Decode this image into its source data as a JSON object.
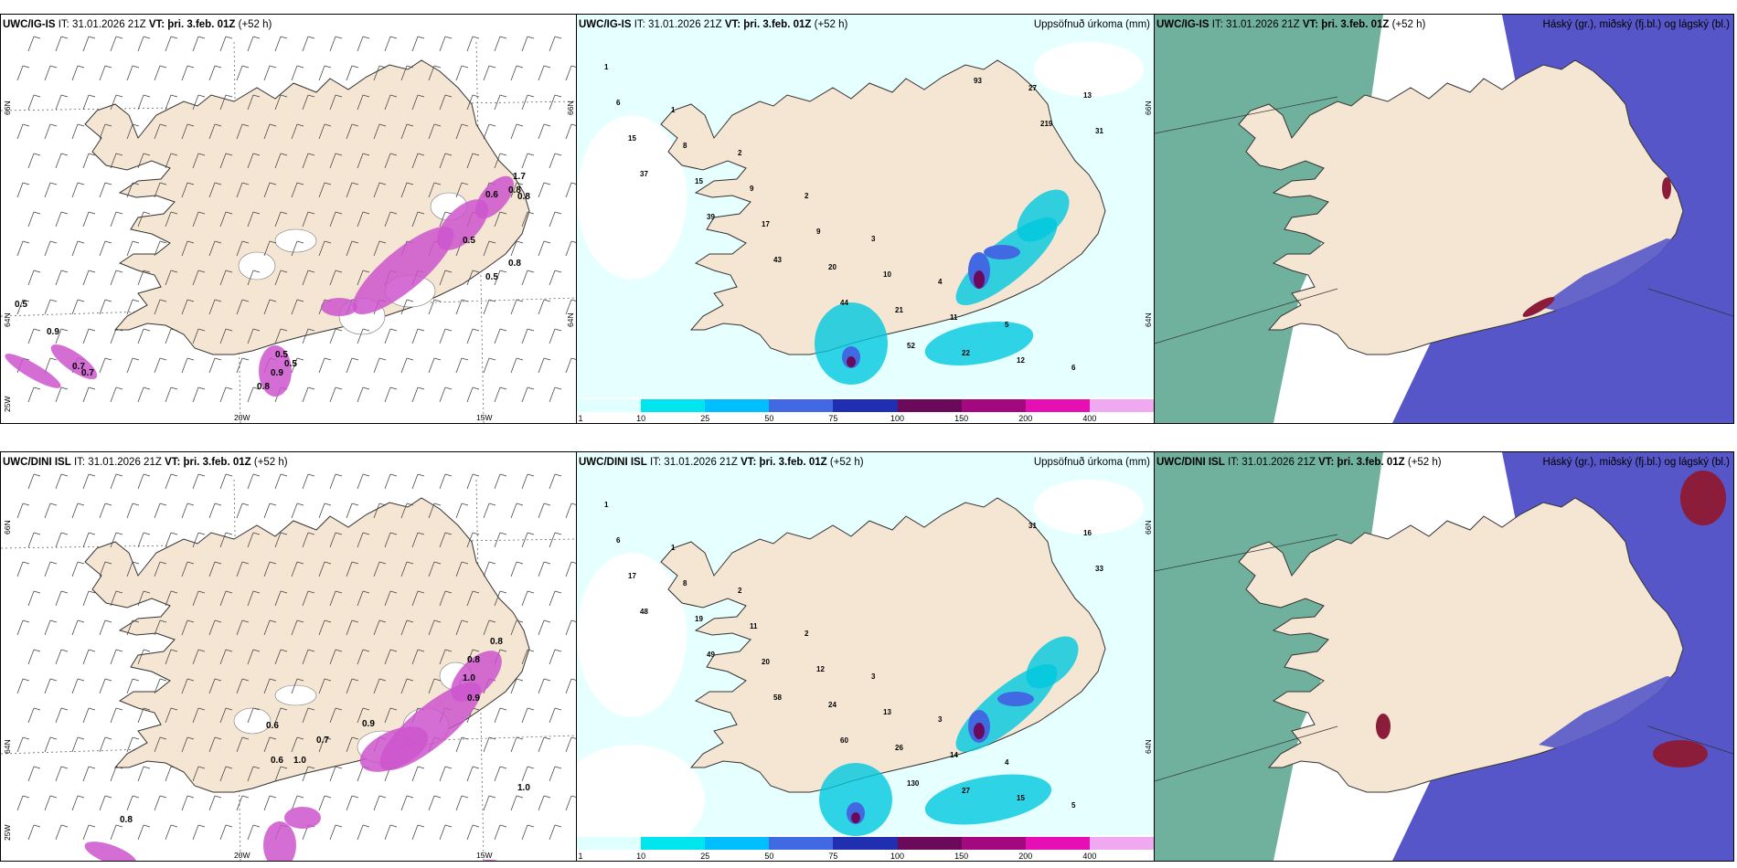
{
  "panels": [
    {
      "model": "UWC/IG-IS",
      "it_label": "IT:",
      "it_value": "31.01.2026 21Z",
      "vt_label": "VT: þri. 3.feb. 01Z",
      "lead": "(+52 h)",
      "right_title": "",
      "type": "wind"
    },
    {
      "model": "UWC/IG-IS",
      "it_label": "IT:",
      "it_value": "31.01.2026 21Z",
      "vt_label": "VT: þri. 3.feb. 01Z",
      "lead": "(+52 h)",
      "right_title": "Uppsöfnuð úrkoma (mm)",
      "type": "precip"
    },
    {
      "model": "UWC/IG-IS",
      "it_label": "IT:",
      "it_value": "31.01.2026 21Z",
      "vt_label": "VT: þri. 3.feb. 01Z",
      "lead": "(+52 h)",
      "right_title": "Háský (gr.), miðský (fj.bl.) og lágský (bl.)",
      "type": "cloud"
    },
    {
      "model": "UWC/DINI ISL",
      "it_label": "IT:",
      "it_value": "31.01.2026 21Z",
      "vt_label": "VT: þri. 3.feb. 01Z",
      "lead": "(+52 h)",
      "right_title": "",
      "type": "wind"
    },
    {
      "model": "UWC/DINI ISL",
      "it_label": "IT:",
      "it_value": "31.01.2026 21Z",
      "vt_label": "VT: þri. 3.feb. 01Z",
      "lead": "(+52 h)",
      "right_title": "Uppsöfnuð úrkoma (mm)",
      "type": "precip"
    },
    {
      "model": "UWC/DINI ISL",
      "it_label": "IT:",
      "it_value": "31.01.2026 21Z",
      "vt_label": "VT: þri. 3.feb. 01Z",
      "lead": "(+52 h)",
      "right_title": "Háský (gr.), miðský (fj.bl.) og lágský (bl.)",
      "type": "cloud"
    }
  ],
  "axis_labels": {
    "lat_66": "66N",
    "lat_64": "64N",
    "lon_25": "25W",
    "lon_20": "20W",
    "lon_15": "15W"
  },
  "colorbar": {
    "ticks": [
      "1",
      "10",
      "25",
      "50",
      "75",
      "100",
      "150",
      "200",
      "400"
    ],
    "colors": [
      "#e0ffff",
      "#00e5ee",
      "#00bfff",
      "#4169e1",
      "#1f2fb0",
      "#6b0a5a",
      "#a3097f",
      "#e60fb3",
      "#f0a8f0"
    ]
  },
  "colors": {
    "land": "#f5e6d3",
    "sea_precip": "#e6ffff",
    "cloud_high": "#5fa892",
    "cloud_mid": "#5656c8",
    "cloud_low": "#8b1c3a",
    "ice_hatch": "#d8c0c0"
  },
  "precip_labels_top": [
    "1",
    "1",
    "2",
    "2",
    "3",
    "4",
    "5",
    "6",
    "6",
    "8",
    "9",
    "9",
    "10",
    "11",
    "12",
    "13",
    "15",
    "15",
    "17",
    "20",
    "21",
    "22",
    "27",
    "31",
    "37",
    "39",
    "43",
    "44",
    "52",
    "93",
    "219"
  ],
  "precip_labels_bottom": [
    "1",
    "1",
    "2",
    "2",
    "3",
    "3",
    "4",
    "5",
    "6",
    "8",
    "11",
    "12",
    "13",
    "14",
    "15",
    "16",
    "17",
    "19",
    "20",
    "24",
    "26",
    "27",
    "31",
    "33",
    "48",
    "49",
    "58",
    "60",
    "130"
  ],
  "wind_labels_top": [
    "0.5",
    "0.9",
    "0.7",
    "0.7",
    "0.8",
    "0.5",
    "0.8",
    "0.6",
    "0.8",
    "0.5",
    "1.7",
    "0.5",
    "0.8",
    "0.9",
    "0.5"
  ],
  "wind_labels_bottom": [
    "0.6",
    "0.6",
    "1.0",
    "0.7",
    "0.9",
    "0.8",
    "0.8",
    "1.0",
    "0.9",
    "0.8",
    "1.0"
  ]
}
